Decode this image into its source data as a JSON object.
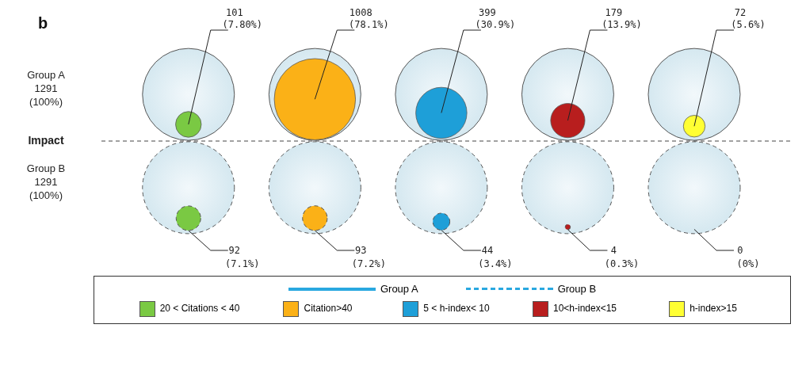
{
  "chart_data": {
    "type": "other",
    "title": "b",
    "categories": [
      "20 < Citations < 40",
      "Citation>40",
      "5 < h-index< 10",
      "10<h-index<15",
      "h-index>15"
    ],
    "colors": [
      "#7ac943",
      "#fbb117",
      "#1e9fd8",
      "#b81e1e",
      "#ffff33"
    ],
    "totals": [
      "1291 (100%)",
      "1291 (100%)"
    ],
    "annotations": [
      "Impact"
    ],
    "legend": "bottom",
    "series": [
      {
        "name": "Group A",
        "color": "#29a8e0",
        "line_style": "solid",
        "values": [
          101,
          1008,
          399,
          179,
          72
        ],
        "value_labels": [
          "101 (7.80%)",
          "1008 (78.1%)",
          "399 (30.9%)",
          "179 (13.9%)",
          "72 (5.6%)"
        ]
      },
      {
        "name": "Group B",
        "color": "#29a8e0",
        "line_style": "dashed",
        "values": [
          92,
          93,
          44,
          4,
          0
        ],
        "value_labels": [
          "92 (7.1%)",
          "93 (7.2%)",
          "44 (3.4%)",
          "4 (0.3%)",
          "0 (0%)"
        ]
      }
    ]
  }
}
